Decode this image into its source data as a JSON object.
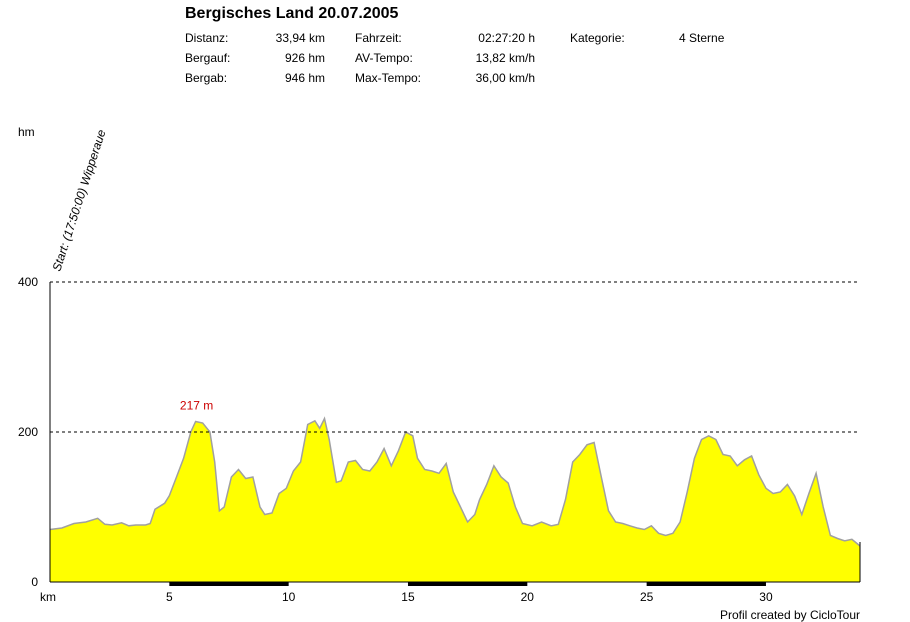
{
  "title": "Bergisches Land 20.07.2005",
  "stats": {
    "distanz_label": "Distanz:",
    "distanz_value": "33,94 km",
    "bergauf_label": "Bergauf:",
    "bergauf_value": "926 hm",
    "bergab_label": "Bergab:",
    "bergab_value": "946 hm",
    "fahrzeit_label": "Fahrzeit:",
    "fahrzeit_value": "02:27:20 h",
    "av_label": "AV-Tempo:",
    "av_value": "13,82 km/h",
    "max_label": "Max-Tempo:",
    "max_value": "36,00 km/h",
    "kategorie_label": "Kategorie:",
    "kategorie_value": "4 Sterne"
  },
  "credit": "Profil created by CicloTour",
  "colors": {
    "fill": "#ffff00",
    "outline": "#a0a0a0",
    "annotation": "#cc0000",
    "axis": "#000000"
  },
  "chart_data": {
    "type": "area",
    "ylabel": "hm",
    "xlabel": "km",
    "xlim": [
      0,
      33.94
    ],
    "ylim": [
      0,
      400
    ],
    "yticks": [
      0,
      200,
      400
    ],
    "yticklabels": [
      "0",
      "200",
      "400"
    ],
    "xticks": [
      5,
      10,
      15,
      20,
      25,
      30
    ],
    "xticklabels": [
      "5",
      "10",
      "15",
      "20",
      "25",
      "30"
    ],
    "grid": "dashed at 200 and 400",
    "start_label": "Start: (17:50:00) Wipperaue",
    "max_annotation": {
      "text": "217 m",
      "x": 6.1,
      "y": 217
    },
    "x": [
      0,
      0.5,
      1,
      1.5,
      2,
      2.3,
      2.6,
      3,
      3.3,
      3.6,
      4,
      4.2,
      4.4,
      4.8,
      5,
      5.3,
      5.6,
      5.9,
      6.1,
      6.4,
      6.7,
      6.9,
      7.1,
      7.3,
      7.6,
      7.9,
      8.2,
      8.5,
      8.8,
      9,
      9.3,
      9.6,
      9.9,
      10.2,
      10.5,
      10.8,
      11.1,
      11.3,
      11.5,
      11.7,
      12,
      12.2,
      12.5,
      12.8,
      13.1,
      13.4,
      13.7,
      14,
      14.3,
      14.6,
      14.9,
      15.2,
      15.4,
      15.7,
      16,
      16.3,
      16.6,
      16.9,
      17.2,
      17.5,
      17.8,
      18,
      18.3,
      18.6,
      18.9,
      19.2,
      19.5,
      19.8,
      20.2,
      20.6,
      21,
      21.3,
      21.6,
      21.9,
      22.2,
      22.5,
      22.8,
      23.1,
      23.4,
      23.7,
      24,
      24.3,
      24.6,
      24.9,
      25.2,
      25.5,
      25.8,
      26.1,
      26.4,
      26.7,
      27,
      27.3,
      27.6,
      27.9,
      28.2,
      28.5,
      28.8,
      29.1,
      29.4,
      29.7,
      30,
      30.3,
      30.6,
      30.9,
      31.2,
      31.5,
      31.8,
      32.1,
      32.4,
      32.7,
      33,
      33.3,
      33.6,
      33.94
    ],
    "y": [
      70,
      72,
      78,
      80,
      85,
      77,
      76,
      79,
      75,
      76,
      76,
      78,
      97,
      105,
      115,
      140,
      165,
      200,
      214,
      212,
      200,
      160,
      95,
      100,
      140,
      150,
      138,
      140,
      100,
      90,
      92,
      118,
      125,
      148,
      160,
      210,
      215,
      205,
      218,
      190,
      133,
      135,
      160,
      162,
      150,
      148,
      160,
      178,
      155,
      175,
      200,
      195,
      165,
      150,
      148,
      145,
      158,
      120,
      100,
      80,
      90,
      110,
      130,
      155,
      140,
      132,
      100,
      78,
      75,
      80,
      75,
      77,
      110,
      160,
      170,
      183,
      186,
      140,
      95,
      80,
      78,
      75,
      72,
      70,
      75,
      65,
      62,
      65,
      80,
      120,
      165,
      190,
      195,
      190,
      170,
      168,
      155,
      163,
      168,
      143,
      125,
      118,
      120,
      130,
      115,
      90,
      118,
      145,
      100,
      62,
      58,
      55,
      57,
      48
    ]
  }
}
